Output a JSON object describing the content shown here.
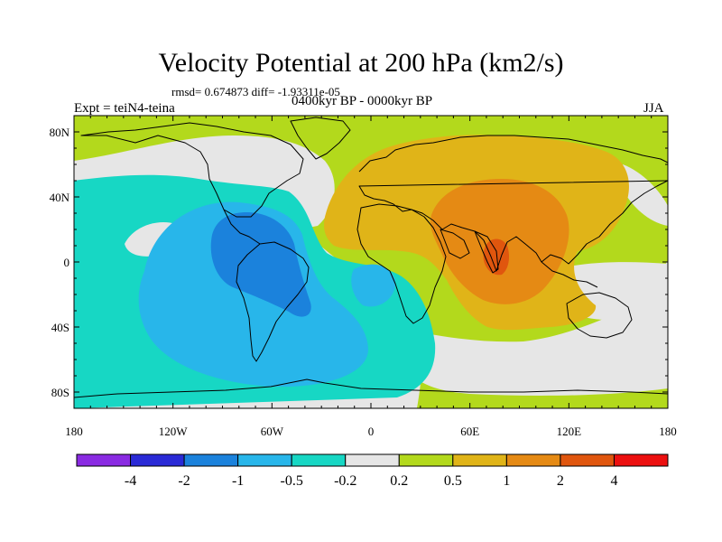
{
  "title": "Velocity Potential at 200 hPa (km2/s)",
  "stats": "rmsd= 0.674873 diff= -1.93311e-05",
  "experiment": "Expt = teiN4-teina",
  "period": "0400kyr BP - 0000kyr BP",
  "season": "JJA",
  "axes": {
    "lon_labels": [
      "180",
      "120W",
      "60W",
      "0",
      "60E",
      "120E",
      "180"
    ],
    "lat_labels": [
      "80N",
      "40N",
      "0",
      "40S",
      "80S"
    ]
  },
  "colorbar": {
    "colors": [
      "#8a2be2",
      "#2a2ad6",
      "#1b82dc",
      "#28b6ea",
      "#17d7c4",
      "#e6e6e6",
      "#b3d91c",
      "#e0b418",
      "#e58a14",
      "#e0560e",
      "#ec1010"
    ],
    "labels": [
      "-4",
      "-2",
      "-1",
      "-0.5",
      "-0.2",
      "0.2",
      "0.5",
      "1",
      "2",
      "4"
    ]
  },
  "field_colors": {
    "strong_negative": "#1b82dc",
    "negative": "#28b6ea",
    "weak_negative": "#17d7c4",
    "neutral": "#e6e6e6",
    "weak_positive": "#b3d91c",
    "positive": "#e0b418",
    "strong_positive": "#e58a14",
    "max_positive": "#e0560e"
  }
}
